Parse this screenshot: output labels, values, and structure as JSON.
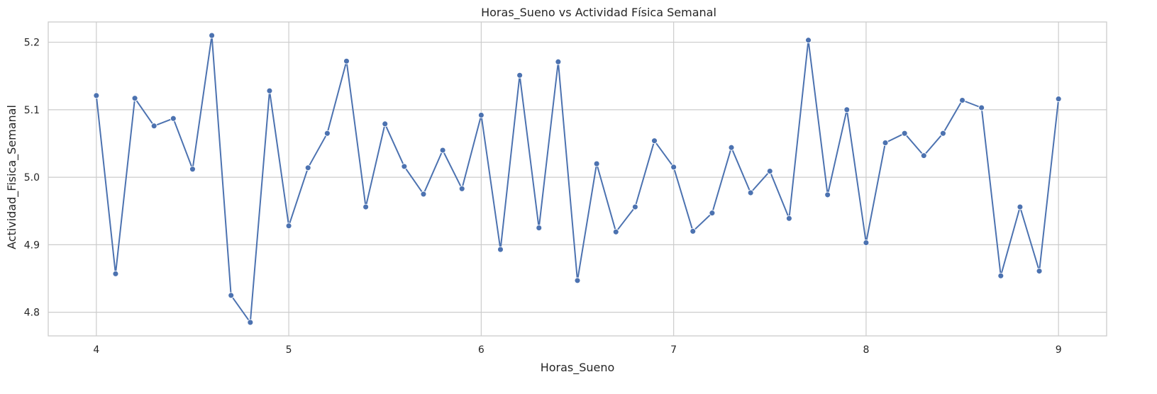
{
  "chart_data": {
    "type": "line",
    "title": "Horas_Sueno vs Actividad Física Semanal",
    "xlabel": "Horas_Sueno",
    "ylabel": "Actividad_Fisica_Semanal",
    "xlim": [
      3.75,
      9.25
    ],
    "ylim": [
      4.765,
      5.23
    ],
    "xticks": [
      4,
      5,
      6,
      7,
      8,
      9
    ],
    "yticks": [
      4.8,
      4.9,
      5.0,
      5.1,
      5.2
    ],
    "ytick_labels": [
      "4.8",
      "4.9",
      "5.0",
      "5.1",
      "5.2"
    ],
    "grid": true,
    "legend": "none",
    "series_color": "#4c72b0",
    "x": [
      4.0,
      4.1,
      4.2,
      4.3,
      4.4,
      4.5,
      4.6,
      4.7,
      4.8,
      4.9,
      5.0,
      5.1,
      5.2,
      5.3,
      5.4,
      5.5,
      5.6,
      5.7,
      5.8,
      5.9,
      6.0,
      6.1,
      6.2,
      6.3,
      6.4,
      6.5,
      6.6,
      6.7,
      6.8,
      6.9,
      7.0,
      7.1,
      7.2,
      7.3,
      7.4,
      7.5,
      7.6,
      7.7,
      7.8,
      7.9,
      8.0,
      8.1,
      8.2,
      8.3,
      8.4,
      8.5,
      8.6,
      8.7,
      8.8,
      8.9,
      9.0
    ],
    "y": [
      5.121,
      4.857,
      5.117,
      5.076,
      5.087,
      5.012,
      5.21,
      4.825,
      4.785,
      5.128,
      4.928,
      5.014,
      5.065,
      5.172,
      4.956,
      5.079,
      5.016,
      4.975,
      5.04,
      4.983,
      5.092,
      4.893,
      5.151,
      4.925,
      5.171,
      4.847,
      5.02,
      4.919,
      4.956,
      5.054,
      5.015,
      4.92,
      4.947,
      5.044,
      4.977,
      5.009,
      4.939,
      5.203,
      4.974,
      5.1,
      4.903,
      5.051,
      5.065,
      5.032,
      5.065,
      5.114,
      5.103,
      4.854,
      4.956,
      4.861,
      5.116
    ]
  }
}
